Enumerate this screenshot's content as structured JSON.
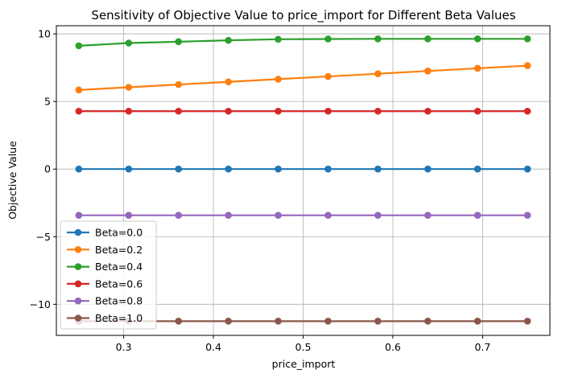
{
  "chart_data": {
    "type": "line",
    "title": "Sensitivity of Objective Value to price_import for Different Beta Values",
    "xlabel": "price_import",
    "ylabel": "Objective Value",
    "xlim": [
      0.225,
      0.775
    ],
    "ylim": [
      -12.3,
      10.6
    ],
    "xticks": [
      0.3,
      0.4,
      0.5,
      0.6,
      0.7
    ],
    "xtick_labels": [
      "0.3",
      "0.4",
      "0.5",
      "0.6",
      "0.7"
    ],
    "yticks": [
      -10,
      -5,
      0,
      5,
      10
    ],
    "ytick_labels": [
      "−10",
      "−5",
      "0",
      "5",
      "10"
    ],
    "grid": true,
    "legend_position": "lower-left",
    "x": [
      0.25,
      0.3056,
      0.3611,
      0.4167,
      0.4722,
      0.5278,
      0.5833,
      0.6389,
      0.6944,
      0.75
    ],
    "series": [
      {
        "name": "Beta=0.0",
        "color": "#1f77b4",
        "values": [
          0,
          0,
          0,
          0,
          0,
          0,
          0,
          0,
          0,
          0
        ]
      },
      {
        "name": "Beta=0.2",
        "color": "#ff7f0e",
        "values": [
          5.85,
          6.05,
          6.25,
          6.45,
          6.65,
          6.85,
          7.05,
          7.25,
          7.45,
          7.65
        ]
      },
      {
        "name": "Beta=0.4",
        "color": "#2ca02c",
        "values": [
          9.12,
          9.32,
          9.42,
          9.52,
          9.6,
          9.62,
          9.63,
          9.63,
          9.63,
          9.63
        ]
      },
      {
        "name": "Beta=0.6",
        "color": "#d62728",
        "values": [
          4.28,
          4.28,
          4.28,
          4.28,
          4.28,
          4.28,
          4.28,
          4.28,
          4.28,
          4.28
        ]
      },
      {
        "name": "Beta=0.8",
        "color": "#9467bd",
        "values": [
          -3.42,
          -3.42,
          -3.42,
          -3.42,
          -3.42,
          -3.42,
          -3.42,
          -3.42,
          -3.42,
          -3.42
        ]
      },
      {
        "name": "Beta=1.0",
        "color": "#8c564b",
        "values": [
          -11.25,
          -11.25,
          -11.25,
          -11.25,
          -11.25,
          -11.25,
          -11.25,
          -11.25,
          -11.25,
          -11.25
        ]
      }
    ]
  }
}
